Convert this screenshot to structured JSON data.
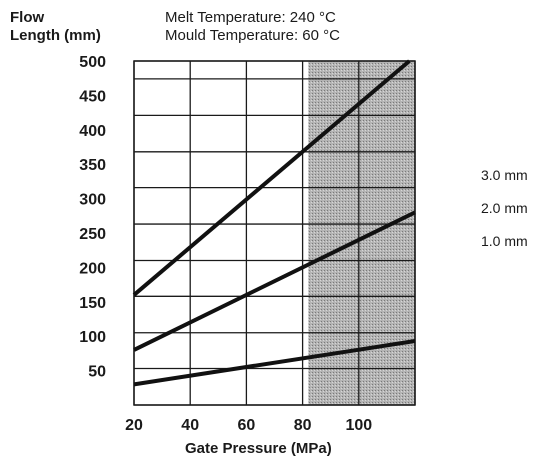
{
  "chart_data": {
    "type": "line",
    "ylabel": [
      "Flow",
      "Length (mm)"
    ],
    "xlabel": "Gate Pressure (MPa)",
    "conditions": [
      "Melt Temperature: 240 °C",
      "Mould Temperature: 60 °C"
    ],
    "xlim": [
      20,
      120
    ],
    "ylim": [
      0,
      500
    ],
    "x_ticks": [
      20,
      40,
      60,
      80,
      100
    ],
    "y_ticks": [
      50,
      100,
      150,
      200,
      250,
      300,
      350,
      400,
      450,
      500
    ],
    "x_grid": [
      20,
      40,
      60,
      80,
      100,
      120
    ],
    "y_grid": [
      0,
      53,
      105,
      158,
      210,
      263,
      316,
      368,
      421,
      474,
      500
    ],
    "shaded_region": {
      "x_from": 82,
      "x_to": 120,
      "color": "#a9a9a9"
    },
    "grid": true,
    "legend_position": "right",
    "series": [
      {
        "name": "3.0 mm",
        "x": [
          20,
          118
        ],
        "y": [
          160,
          500
        ]
      },
      {
        "name": "2.0 mm",
        "x": [
          20,
          120
        ],
        "y": [
          80,
          280
        ]
      },
      {
        "name": "1.0 mm",
        "x": [
          20,
          120
        ],
        "y": [
          30,
          93
        ]
      }
    ]
  }
}
